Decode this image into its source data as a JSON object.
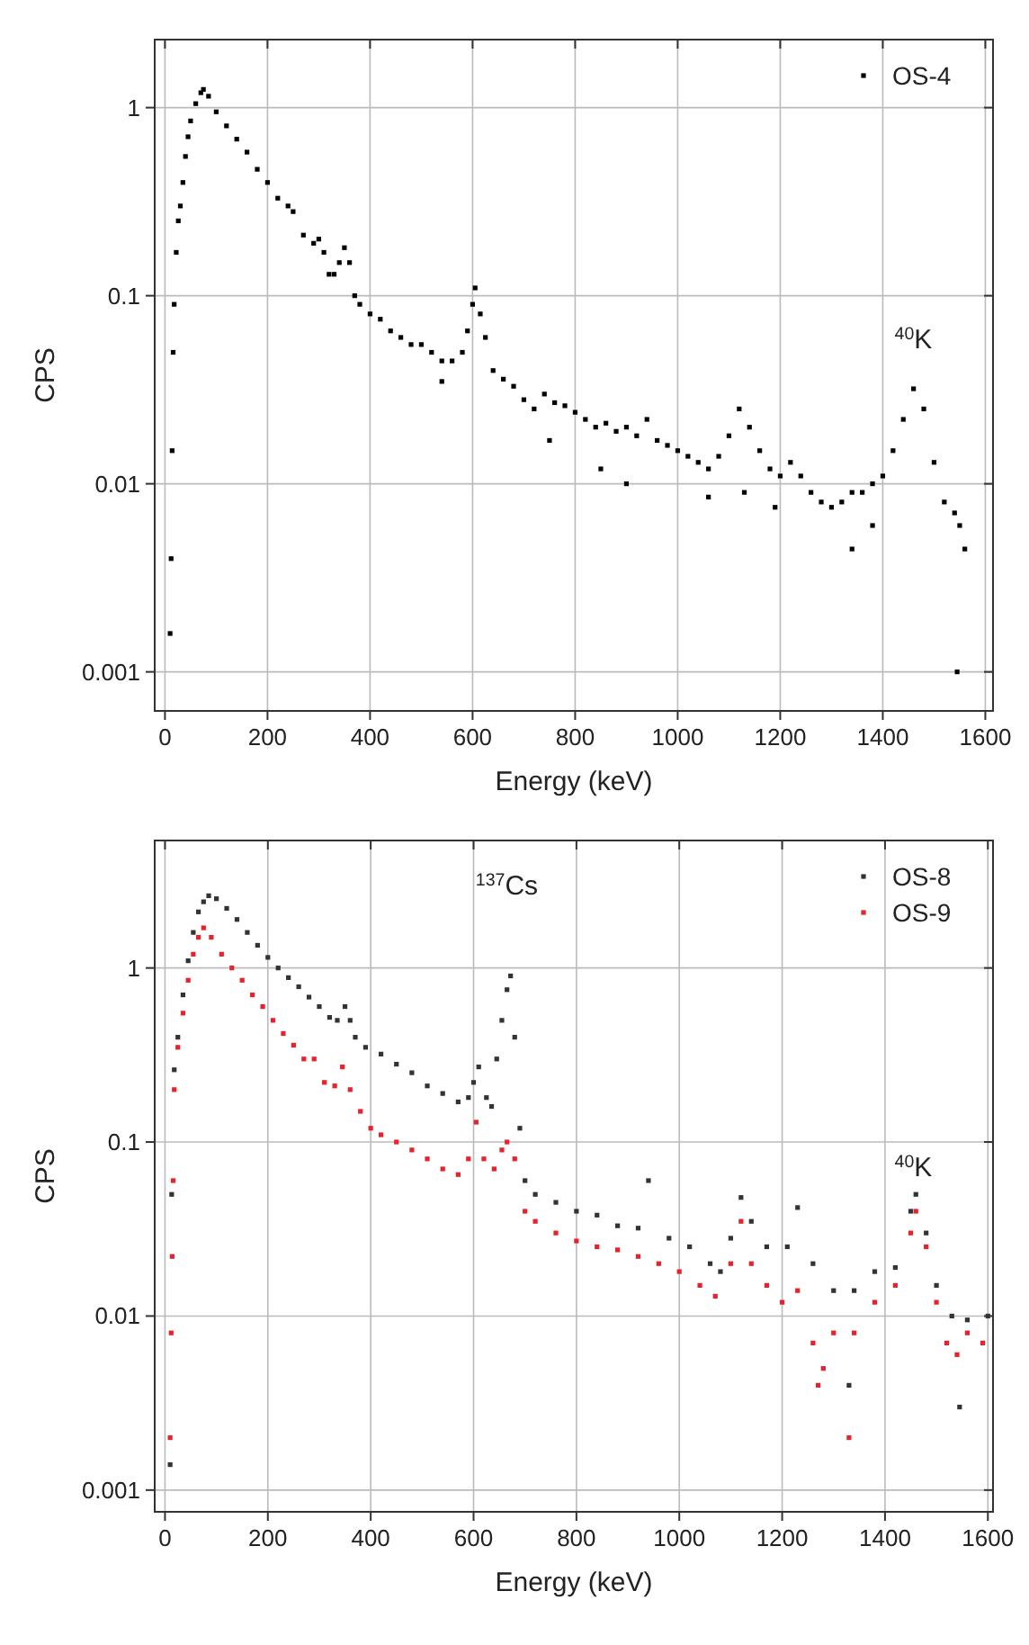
{
  "chart_data": [
    {
      "type": "scatter",
      "xlabel": "Energy (keV)",
      "ylabel": "CPS",
      "log": "y",
      "grid": true,
      "legend": "top right",
      "marker": "square",
      "xlim": [
        -20,
        1615
      ],
      "ylim": [
        0.00062,
        2.3
      ],
      "xticks": [
        0,
        200,
        400,
        600,
        800,
        1000,
        1200,
        1400,
        1600
      ],
      "yticks": [
        {
          "value": 0.001,
          "label": "0.001"
        },
        {
          "value": 0.01,
          "label": "0.01"
        },
        {
          "value": 0.1,
          "label": "0.1"
        },
        1
      ],
      "annotations": [
        "$^{40}$K"
      ],
      "series": [
        {
          "name": "OS-4",
          "color": "#000000",
          "x": [
            10,
            12,
            14,
            16,
            18,
            22,
            26,
            30,
            35,
            40,
            45,
            50,
            60,
            70,
            75,
            85,
            100,
            120,
            140,
            160,
            180,
            200,
            220,
            240,
            250,
            270,
            290,
            300,
            310,
            320,
            330,
            340,
            350,
            360,
            370,
            380,
            400,
            420,
            440,
            460,
            480,
            500,
            520,
            540,
            560,
            580,
            590,
            600,
            605,
            615,
            625,
            640,
            660,
            680,
            700,
            720,
            740,
            760,
            780,
            800,
            820,
            840,
            860,
            880,
            900,
            920,
            940,
            960,
            980,
            1000,
            1020,
            1040,
            1060,
            1080,
            1100,
            1120,
            1140,
            1160,
            1180,
            1200,
            1220,
            1240,
            1260,
            1280,
            1300,
            1320,
            1340,
            1360,
            1380,
            1400,
            1420,
            1440,
            1460,
            1480,
            1500,
            1520,
            1540,
            1550,
            1545,
            850,
            900,
            750,
            1060,
            1130,
            1190,
            1340,
            1560,
            540,
            1380
          ],
          "values": [
            0.0016,
            0.004,
            0.015,
            0.05,
            0.09,
            0.17,
            0.25,
            0.3,
            0.4,
            0.55,
            0.7,
            0.85,
            1.05,
            1.2,
            1.25,
            1.15,
            0.95,
            0.8,
            0.68,
            0.58,
            0.47,
            0.4,
            0.33,
            0.3,
            0.28,
            0.21,
            0.19,
            0.2,
            0.17,
            0.13,
            0.13,
            0.15,
            0.18,
            0.15,
            0.1,
            0.09,
            0.08,
            0.075,
            0.065,
            0.06,
            0.055,
            0.055,
            0.05,
            0.045,
            0.045,
            0.05,
            0.065,
            0.09,
            0.11,
            0.08,
            0.06,
            0.04,
            0.036,
            0.033,
            0.028,
            0.025,
            0.03,
            0.027,
            0.026,
            0.024,
            0.022,
            0.02,
            0.021,
            0.019,
            0.02,
            0.018,
            0.022,
            0.017,
            0.016,
            0.015,
            0.014,
            0.013,
            0.012,
            0.014,
            0.018,
            0.025,
            0.02,
            0.015,
            0.012,
            0.011,
            0.013,
            0.011,
            0.009,
            0.008,
            0.0075,
            0.008,
            0.009,
            0.009,
            0.01,
            0.011,
            0.015,
            0.022,
            0.032,
            0.025,
            0.013,
            0.008,
            0.007,
            0.006,
            0.001,
            0.012,
            0.01,
            0.017,
            0.0085,
            0.009,
            0.0075,
            0.0045,
            0.0045,
            0.035,
            0.006
          ]
        }
      ]
    },
    {
      "type": "scatter",
      "xlabel": "Energy (keV)",
      "ylabel": "CPS",
      "log": "y",
      "grid": true,
      "legend": "top right",
      "marker": "square",
      "xlim": [
        -20,
        1610
      ],
      "ylim": [
        0.00075,
        5.4
      ],
      "xticks": [
        0,
        200,
        400,
        600,
        800,
        1000,
        1200,
        1400,
        1600
      ],
      "yticks": [
        {
          "value": 0.001,
          "label": "0.001"
        },
        {
          "value": 0.01,
          "label": "0.01"
        },
        {
          "value": 0.1,
          "label": "0.1"
        },
        1
      ],
      "annotations": [
        "$^{137}$Cs",
        "$^{40}$K"
      ],
      "series": [
        {
          "name": "OS-8",
          "color": "#333333",
          "x": [
            10,
            13,
            18,
            25,
            35,
            45,
            55,
            65,
            75,
            85,
            100,
            120,
            140,
            160,
            180,
            200,
            220,
            240,
            260,
            280,
            300,
            320,
            335,
            350,
            360,
            370,
            390,
            420,
            450,
            480,
            510,
            540,
            570,
            590,
            600,
            610,
            625,
            635,
            645,
            655,
            665,
            672,
            680,
            690,
            700,
            720,
            760,
            800,
            840,
            880,
            920,
            940,
            980,
            1020,
            1060,
            1080,
            1100,
            1120,
            1140,
            1170,
            1210,
            1230,
            1260,
            1300,
            1340,
            1380,
            1420,
            1450,
            1460,
            1480,
            1500,
            1530,
            1560,
            1545,
            1330,
            1600
          ],
          "values": [
            0.0014,
            0.05,
            0.26,
            0.4,
            0.7,
            1.1,
            1.6,
            2.1,
            2.4,
            2.6,
            2.5,
            2.2,
            1.9,
            1.6,
            1.35,
            1.15,
            1.0,
            0.88,
            0.78,
            0.68,
            0.6,
            0.52,
            0.5,
            0.6,
            0.5,
            0.4,
            0.35,
            0.32,
            0.28,
            0.25,
            0.21,
            0.19,
            0.17,
            0.18,
            0.22,
            0.27,
            0.18,
            0.16,
            0.3,
            0.5,
            0.75,
            0.9,
            0.4,
            0.12,
            0.06,
            0.05,
            0.045,
            0.04,
            0.038,
            0.033,
            0.032,
            0.06,
            0.028,
            0.025,
            0.02,
            0.018,
            0.028,
            0.048,
            0.035,
            0.025,
            0.025,
            0.042,
            0.02,
            0.014,
            0.014,
            0.018,
            0.019,
            0.04,
            0.05,
            0.03,
            0.015,
            0.01,
            0.0095,
            0.003,
            0.004,
            0.01
          ]
        },
        {
          "name": "OS-9",
          "color": "#e8212b",
          "x": [
            10,
            12,
            14,
            16,
            18,
            25,
            35,
            45,
            55,
            65,
            75,
            90,
            110,
            130,
            150,
            170,
            190,
            210,
            230,
            250,
            270,
            290,
            310,
            330,
            345,
            360,
            380,
            400,
            420,
            450,
            480,
            510,
            540,
            570,
            590,
            605,
            620,
            640,
            655,
            665,
            680,
            700,
            720,
            760,
            800,
            840,
            880,
            920,
            960,
            1000,
            1040,
            1070,
            1100,
            1120,
            1140,
            1170,
            1200,
            1230,
            1260,
            1280,
            1300,
            1340,
            1380,
            1420,
            1450,
            1460,
            1480,
            1500,
            1520,
            1540,
            1560,
            1590,
            1330,
            1270
          ],
          "values": [
            0.002,
            0.008,
            0.022,
            0.06,
            0.2,
            0.35,
            0.55,
            0.85,
            1.2,
            1.5,
            1.7,
            1.5,
            1.2,
            1.0,
            0.85,
            0.7,
            0.6,
            0.5,
            0.42,
            0.36,
            0.3,
            0.3,
            0.22,
            0.21,
            0.27,
            0.2,
            0.15,
            0.12,
            0.11,
            0.1,
            0.09,
            0.08,
            0.07,
            0.065,
            0.08,
            0.13,
            0.08,
            0.07,
            0.09,
            0.1,
            0.08,
            0.04,
            0.035,
            0.03,
            0.027,
            0.025,
            0.024,
            0.022,
            0.02,
            0.018,
            0.015,
            0.013,
            0.02,
            0.035,
            0.02,
            0.015,
            0.012,
            0.014,
            0.007,
            0.005,
            0.008,
            0.008,
            0.012,
            0.015,
            0.03,
            0.04,
            0.025,
            0.012,
            0.007,
            0.006,
            0.008,
            0.007,
            0.002,
            0.004
          ]
        }
      ]
    }
  ]
}
